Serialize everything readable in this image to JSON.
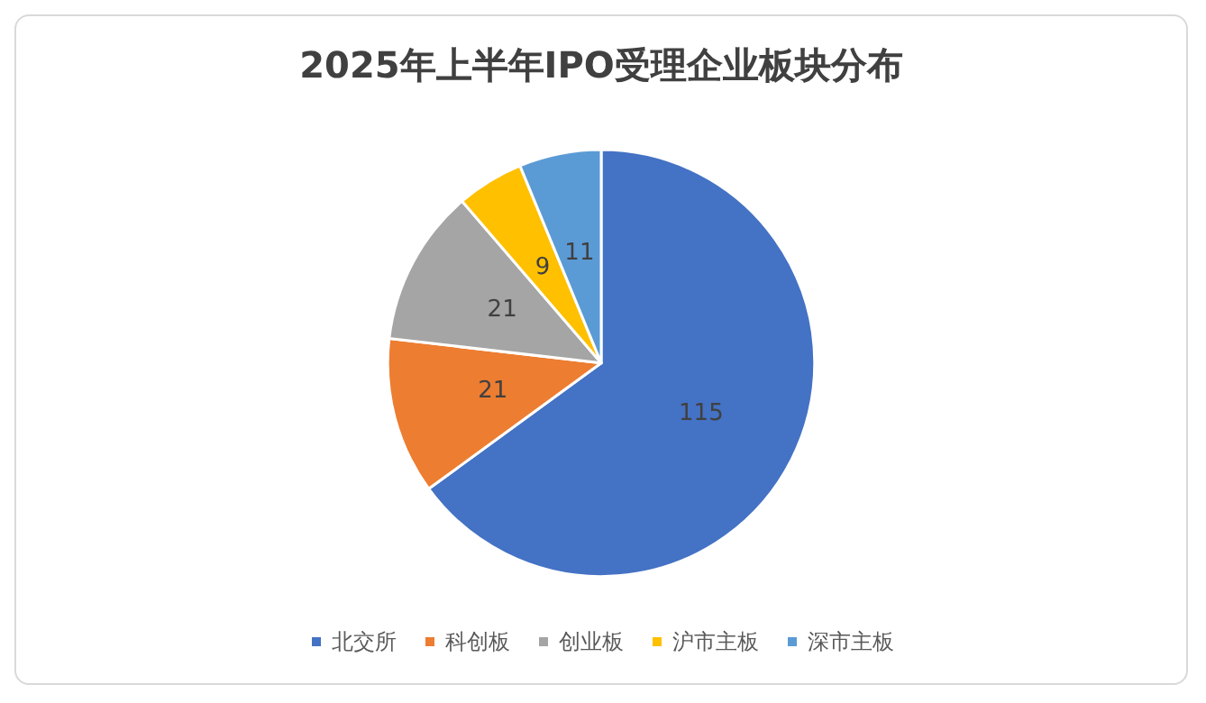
{
  "chart_data": {
    "type": "pie",
    "title": "2025年上半年IPO受理企业板块分布",
    "categories": [
      "北交所",
      "科创板",
      "创业板",
      "沪市主板",
      "深市主板"
    ],
    "values": [
      115,
      21,
      21,
      9,
      11
    ],
    "colors": [
      "#4472c4",
      "#ed7d31",
      "#a5a5a5",
      "#ffc000",
      "#5b9bd5"
    ],
    "data_labels": true,
    "legend": "bottom"
  }
}
